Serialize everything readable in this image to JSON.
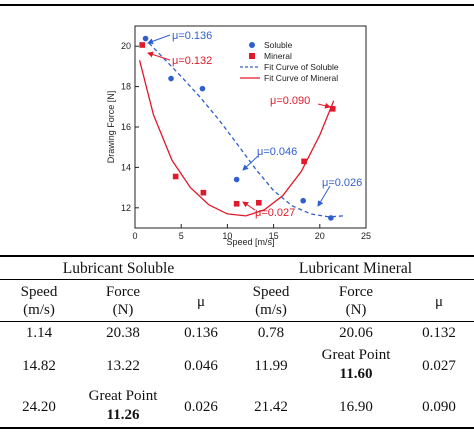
{
  "chart_data": {
    "type": "scatter",
    "xlabel": "Speed [m/s]",
    "ylabel": "Drawing Force [N]",
    "xlim": [
      0,
      25
    ],
    "ylim": [
      11,
      21
    ],
    "xticks": [
      0,
      5,
      10,
      15,
      20,
      25
    ],
    "yticks": [
      12,
      14,
      16,
      18,
      20
    ],
    "grid": false,
    "legend_position": "top-right",
    "series": [
      {
        "name": "Soluble",
        "kind": "points",
        "marker": "circle",
        "color": "#2f5fce",
        "x": [
          1.14,
          3.9,
          7.3,
          11.0,
          18.2,
          21.2
        ],
        "y": [
          20.38,
          18.4,
          17.9,
          13.4,
          12.35,
          11.5
        ]
      },
      {
        "name": "Mineral",
        "kind": "points",
        "marker": "square",
        "color": "#e0192b",
        "x": [
          0.78,
          4.4,
          7.4,
          11.0,
          13.4,
          18.3,
          21.4
        ],
        "y": [
          20.06,
          13.55,
          12.75,
          12.2,
          12.25,
          14.3,
          16.9
        ]
      },
      {
        "name": "Fit Curve of Soluble",
        "kind": "fit",
        "style": "dashed",
        "color": "#2f5fce",
        "x": [
          1.0,
          3.0,
          5.0,
          7.0,
          9.0,
          11.0,
          13.0,
          15.0,
          17.0,
          19.0,
          21.0,
          22.5
        ],
        "y": [
          20.4,
          19.45,
          18.5,
          17.5,
          16.4,
          15.2,
          13.95,
          12.85,
          12.1,
          11.7,
          11.55,
          11.6
        ]
      },
      {
        "name": "Fit Curve of Mineral",
        "kind": "fit",
        "style": "solid",
        "color": "#e0192b",
        "x": [
          0.5,
          2.0,
          4.0,
          6.0,
          8.0,
          10.0,
          12.0,
          14.0,
          16.0,
          18.0,
          20.0,
          21.5
        ],
        "y": [
          19.3,
          16.6,
          14.35,
          13.0,
          12.15,
          11.7,
          11.6,
          11.9,
          12.6,
          13.8,
          15.6,
          17.3
        ]
      }
    ],
    "annotations": [
      {
        "text": "μ=0.136",
        "color": "#2f5fce"
      },
      {
        "text": "μ=0.132",
        "color": "#e0192b"
      },
      {
        "text": "μ=0.046",
        "color": "#2f5fce"
      },
      {
        "text": "μ=0.026",
        "color": "#2f5fce"
      },
      {
        "text": "μ=0.090",
        "color": "#e0192b"
      },
      {
        "text": "μ=0.027",
        "color": "#e0192b"
      }
    ]
  },
  "table": {
    "groups": [
      "Lubricant Soluble",
      "Lubricant Mineral"
    ],
    "headers": [
      {
        "line1": "Speed",
        "line2": "(m/s)"
      },
      {
        "line1": "Force",
        "line2": "(N)"
      },
      {
        "line1": "μ",
        "line2": ""
      },
      {
        "line1": "Speed",
        "line2": "(m/s)"
      },
      {
        "line1": "Force",
        "line2": "(N)"
      },
      {
        "line1": "μ",
        "line2": ""
      }
    ],
    "rows": [
      [
        "1.14",
        "20.38",
        "0.136",
        "0.78",
        "20.06",
        "0.132"
      ],
      [
        "14.82",
        "13.22",
        "0.046",
        "11.99",
        "",
        "0.027"
      ],
      [
        "24.20",
        "",
        "0.026",
        "21.42",
        "16.90",
        "0.090"
      ]
    ],
    "great_point": {
      "label": "Great Point",
      "soluble_value": "11.26",
      "mineral_value": "11.60"
    }
  }
}
